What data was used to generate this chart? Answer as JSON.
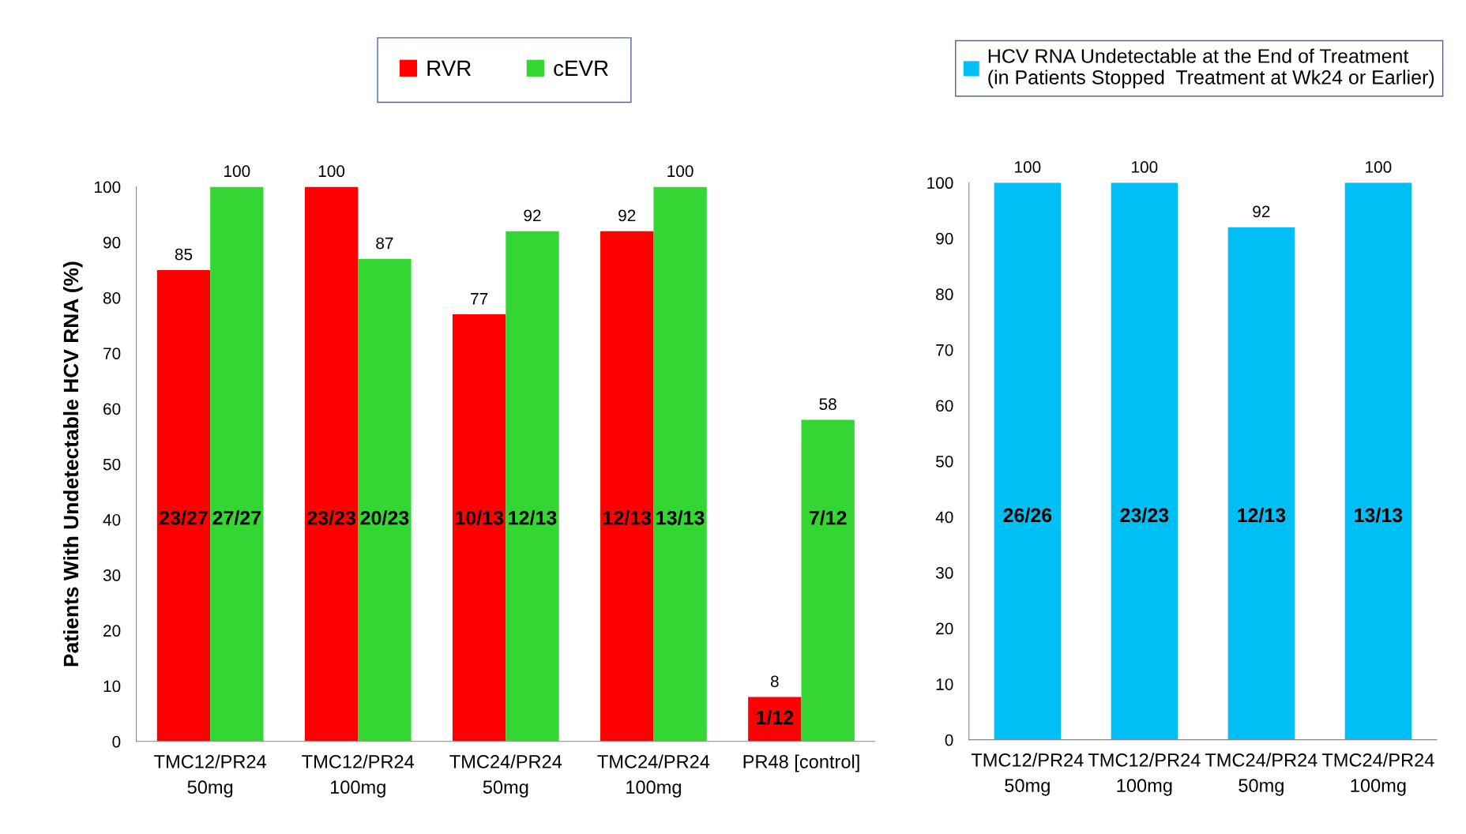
{
  "chart_data": [
    {
      "type": "bar",
      "ylabel": "Patients With Undetectable HCV RNA (%)",
      "categories": [
        "TMC12/PR24\n50mg",
        "TMC12/PR24\n100mg",
        "TMC24/PR24\n50mg",
        "TMC24/PR24\n100mg",
        "PR48 [control]"
      ],
      "series": [
        {
          "name": "RVR",
          "color": "#ff0000",
          "values": [
            85,
            100,
            77,
            92,
            8
          ]
        },
        {
          "name": "cEVR",
          "color": "#33d633",
          "values": [
            100,
            87,
            92,
            100,
            58
          ]
        }
      ],
      "annotations": [
        {
          "text": "23/27",
          "x": "TMC12/PR24\n50mg",
          "y": 40
        },
        {
          "text": "27/27",
          "x": "TMC12/PR24\n50mg",
          "y": 40
        },
        {
          "text": "23/23",
          "x": "TMC12/PR24\n100mg",
          "y": 40
        },
        {
          "text": "20/23",
          "x": "TMC12/PR24\n100mg",
          "y": 40
        },
        {
          "text": "10/13",
          "x": "TMC24/PR24\n50mg",
          "y": 40
        },
        {
          "text": "12/13",
          "x": "TMC24/PR24\n50mg",
          "y": 40
        },
        {
          "text": "12/13",
          "x": "TMC24/PR24\n100mg",
          "y": 40
        },
        {
          "text": "13/13",
          "x": "TMC24/PR24\n100mg",
          "y": 40
        },
        {
          "text": "1/12",
          "x": "PR48 [control]",
          "y": 4
        },
        {
          "text": "7/12",
          "x": "PR48 [control]",
          "y": 40
        }
      ],
      "ylim": [
        0,
        100
      ],
      "yticks": [
        0,
        10,
        20,
        30,
        40,
        50,
        60,
        70,
        80,
        90,
        100
      ],
      "data_labels": true,
      "legend": "top",
      "grid": false
    },
    {
      "type": "bar",
      "categories": [
        "TMC12/PR24\n50mg",
        "TMC12/PR24\n100mg",
        "TMC24/PR24\n50mg",
        "TMC24/PR24\n100mg"
      ],
      "series": [
        {
          "name": "HCV RNA Undetectable at the End of Treatment\n(in Patients Stopped  Treatment at Wk24 or Earlier)",
          "color": "#00bff5",
          "values": [
            100,
            100,
            92,
            100
          ]
        }
      ],
      "annotations": [
        "26/26",
        "23/23",
        "12/13",
        "13/13"
      ],
      "ylim": [
        0,
        100
      ],
      "yticks": [
        0,
        10,
        20,
        30,
        40,
        50,
        60,
        70,
        80,
        90,
        100
      ],
      "data_labels": true,
      "legend": "top",
      "grid": false
    }
  ]
}
